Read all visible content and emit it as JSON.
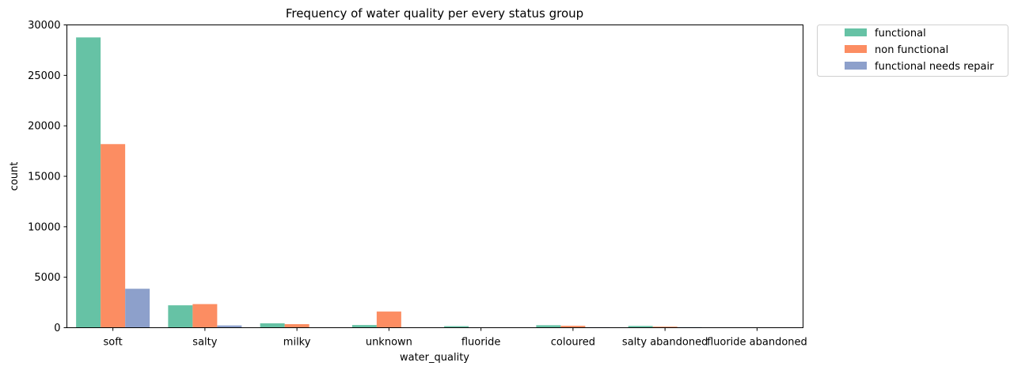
{
  "chart_data": {
    "type": "bar",
    "title": "Frequency of water quality per every status group",
    "xlabel": "water_quality",
    "ylabel": "count",
    "categories": [
      "soft",
      "salty",
      "milky",
      "unknown",
      "fluoride",
      "coloured",
      "salty abandoned",
      "fluoride abandoned"
    ],
    "series": [
      {
        "name": "functional",
        "color": "#66c2a5",
        "values": [
          28760,
          2220,
          438,
          264,
          151,
          246,
          174,
          0
        ]
      },
      {
        "name": "non functional",
        "color": "#fc8d62",
        "values": [
          18190,
          2340,
          350,
          1600,
          29,
          190,
          105,
          12
        ]
      },
      {
        "name": "functional needs repair",
        "color": "#8da0cb",
        "values": [
          3860,
          225,
          14,
          12,
          37,
          54,
          60,
          5
        ]
      }
    ],
    "ylim": [
      0,
      30000
    ],
    "yticks": [
      0,
      5000,
      10000,
      15000,
      20000,
      25000,
      30000
    ],
    "legend_position": "outside-top-right",
    "grid": false
  }
}
